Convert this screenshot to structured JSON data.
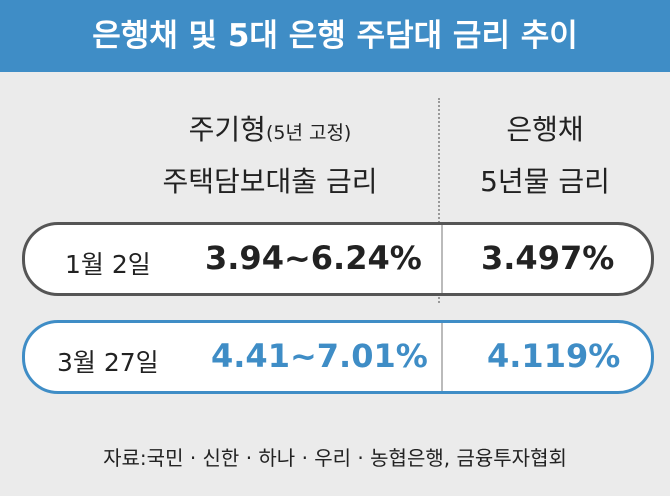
{
  "title": "은행채 및 5대 은행 주담대 금리 추이",
  "header": {
    "col1": {
      "main": "주기형",
      "note": "(5년 고정)",
      "line2": "주택담보대출 금리"
    },
    "col2": [
      "은행채",
      "5년물 금리"
    ]
  },
  "rows": [
    {
      "date": "1월 2일",
      "range": "3.94~6.24%",
      "rate": "3.497%"
    },
    {
      "date": "3월 27일",
      "range": "4.41~7.01%",
      "rate": "4.119%"
    }
  ],
  "source": "자료:국민 · 신한 · 하나 · 우리 · 농협은행, 금융투자협회"
}
